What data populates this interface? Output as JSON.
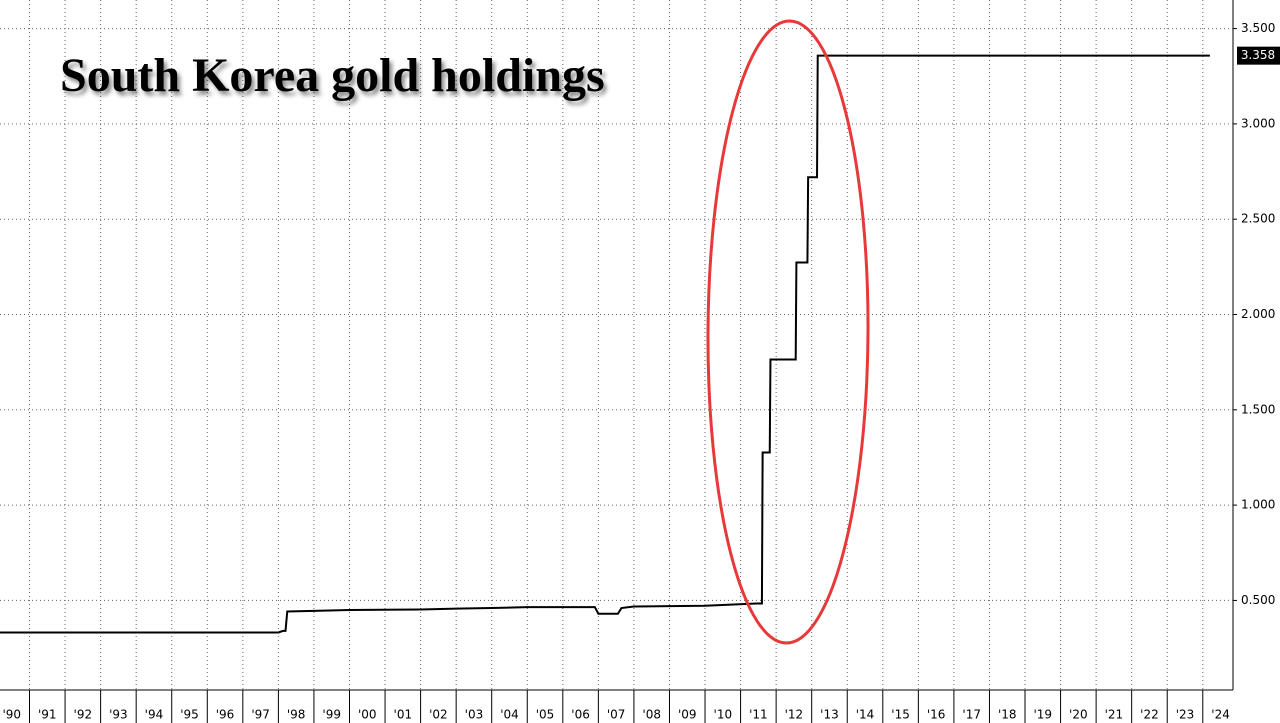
{
  "chart_data": {
    "type": "line",
    "title": "South Korea gold holdings",
    "color": "#000000",
    "grid": true,
    "x": [
      1990.17,
      1998.0,
      1998.13,
      1998.2,
      1998.25,
      1999.0,
      2000.0,
      2002.0,
      2003.0,
      2004.0,
      2005.0,
      2006.9,
      2007.0,
      2007.55,
      2007.65,
      2008.0,
      2010.0,
      2011.45,
      2011.6,
      2011.62,
      2011.82,
      2011.84,
      2012.55,
      2012.57,
      2012.88,
      2012.9,
      2013.15,
      2013.17,
      2024.2
    ],
    "values": [
      0.332,
      0.332,
      0.34,
      0.34,
      0.442,
      0.445,
      0.45,
      0.452,
      0.457,
      0.46,
      0.465,
      0.465,
      0.43,
      0.43,
      0.46,
      0.468,
      0.472,
      0.484,
      0.484,
      1.276,
      1.276,
      1.764,
      1.764,
      2.273,
      2.273,
      2.72,
      2.72,
      3.358,
      3.358
    ],
    "xlim": [
      1990.17,
      2024.85
    ],
    "ylim": [
      0.03,
      3.65
    ],
    "yticks": [
      {
        "value": 0.5,
        "label": "0.500"
      },
      {
        "value": 1,
        "label": "1.000"
      },
      {
        "value": 1.5,
        "label": "1.500"
      },
      {
        "value": 2,
        "label": "2.000"
      },
      {
        "value": 2.5,
        "label": "2.500"
      },
      {
        "value": 3,
        "label": "3.000"
      },
      {
        "value": 3.5,
        "label": "3.500"
      }
    ],
    "xticks": [
      {
        "value": 1990,
        "label": "'90"
      },
      {
        "value": 1991,
        "label": "'91"
      },
      {
        "value": 1992,
        "label": "'92"
      },
      {
        "value": 1993,
        "label": "'93"
      },
      {
        "value": 1994,
        "label": "'94"
      },
      {
        "value": 1995,
        "label": "'95"
      },
      {
        "value": 1996,
        "label": "'96"
      },
      {
        "value": 1997,
        "label": "'97"
      },
      {
        "value": 1998,
        "label": "'98"
      },
      {
        "value": 1999,
        "label": "'99"
      },
      {
        "value": 2000,
        "label": "'00"
      },
      {
        "value": 2001,
        "label": "'01"
      },
      {
        "value": 2002,
        "label": "'02"
      },
      {
        "value": 2003,
        "label": "'03"
      },
      {
        "value": 2004,
        "label": "'04"
      },
      {
        "value": 2005,
        "label": "'05"
      },
      {
        "value": 2006,
        "label": "'06"
      },
      {
        "value": 2007,
        "label": "'07"
      },
      {
        "value": 2008,
        "label": "'08"
      },
      {
        "value": 2009,
        "label": "'09"
      },
      {
        "value": 2010,
        "label": "'10"
      },
      {
        "value": 2011,
        "label": "'11"
      },
      {
        "value": 2012,
        "label": "'12"
      },
      {
        "value": 2013,
        "label": "'13"
      },
      {
        "value": 2014,
        "label": "'14"
      },
      {
        "value": 2015,
        "label": "'15"
      },
      {
        "value": 2016,
        "label": "'16"
      },
      {
        "value": 2017,
        "label": "'17"
      },
      {
        "value": 2018,
        "label": "'18"
      },
      {
        "value": 2019,
        "label": "'19"
      },
      {
        "value": 2020,
        "label": "'20"
      },
      {
        "value": 2021,
        "label": "'21"
      },
      {
        "value": 2022,
        "label": "'22"
      },
      {
        "value": 2023,
        "label": "'23"
      },
      {
        "value": 2024,
        "label": "'24"
      }
    ]
  }
}
